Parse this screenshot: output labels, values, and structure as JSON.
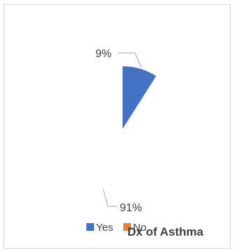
{
  "chart_data": {
    "type": "pie",
    "title": "Dx of Asthma",
    "categories": [
      "Yes",
      "No"
    ],
    "values": [
      9,
      91
    ],
    "data_labels": [
      "9%",
      "91%"
    ],
    "colors": [
      "#4472c4",
      "#ed7d31"
    ],
    "legend": {
      "position": "bottom",
      "entries": [
        "Yes",
        "No"
      ]
    }
  }
}
